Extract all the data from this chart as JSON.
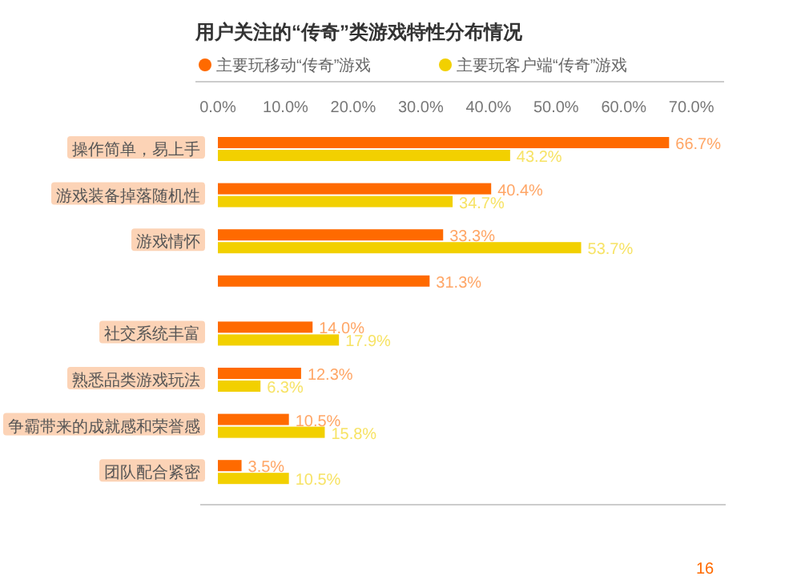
{
  "chart_data": {
    "type": "bar",
    "orientation": "horizontal",
    "title": "用户关注的“传奇”类游戏特性分布情况",
    "categories": [
      "操作简单，易上手",
      "游戏装备掉落随机性",
      "游戏情怀",
      null,
      "社交系统丰富",
      "熟悉品类游戏玩法",
      "争霸带来的成就感和荣誉感",
      "团队配合紧密"
    ],
    "series": [
      {
        "name": "主要玩移动“传奇”游戏",
        "color": "#ff6a00",
        "values": [
          66.7,
          40.4,
          33.3,
          31.3,
          14.0,
          12.3,
          10.5,
          3.5
        ],
        "value_labels": [
          "66.7%",
          "40.4%",
          "33.3%",
          "31.3%",
          "14.0%",
          "12.3%",
          "10.5%",
          "3.5%"
        ]
      },
      {
        "name": "主要玩客户端“传奇”游戏",
        "color": "#f2d000",
        "values": [
          43.2,
          34.7,
          53.7,
          null,
          17.9,
          6.3,
          15.8,
          10.5
        ],
        "value_labels": [
          "43.2%",
          "34.7%",
          "53.7%",
          null,
          "17.9%",
          "6.3%",
          "15.8%",
          "10.5%"
        ]
      }
    ],
    "xlim": [
      0,
      70
    ],
    "xticks": [
      {
        "value": 0,
        "label": "0.0%"
      },
      {
        "value": 10,
        "label": "10.0%"
      },
      {
        "value": 20,
        "label": "20.0%"
      },
      {
        "value": 30,
        "label": "30.0%"
      },
      {
        "value": 40,
        "label": "40.0%"
      },
      {
        "value": 50,
        "label": "50.0%"
      },
      {
        "value": 60,
        "label": "60.0%"
      },
      {
        "value": 70,
        "label": "70.0%"
      }
    ],
    "legend": "top left",
    "grid": false,
    "annotations": [
      "16"
    ]
  }
}
